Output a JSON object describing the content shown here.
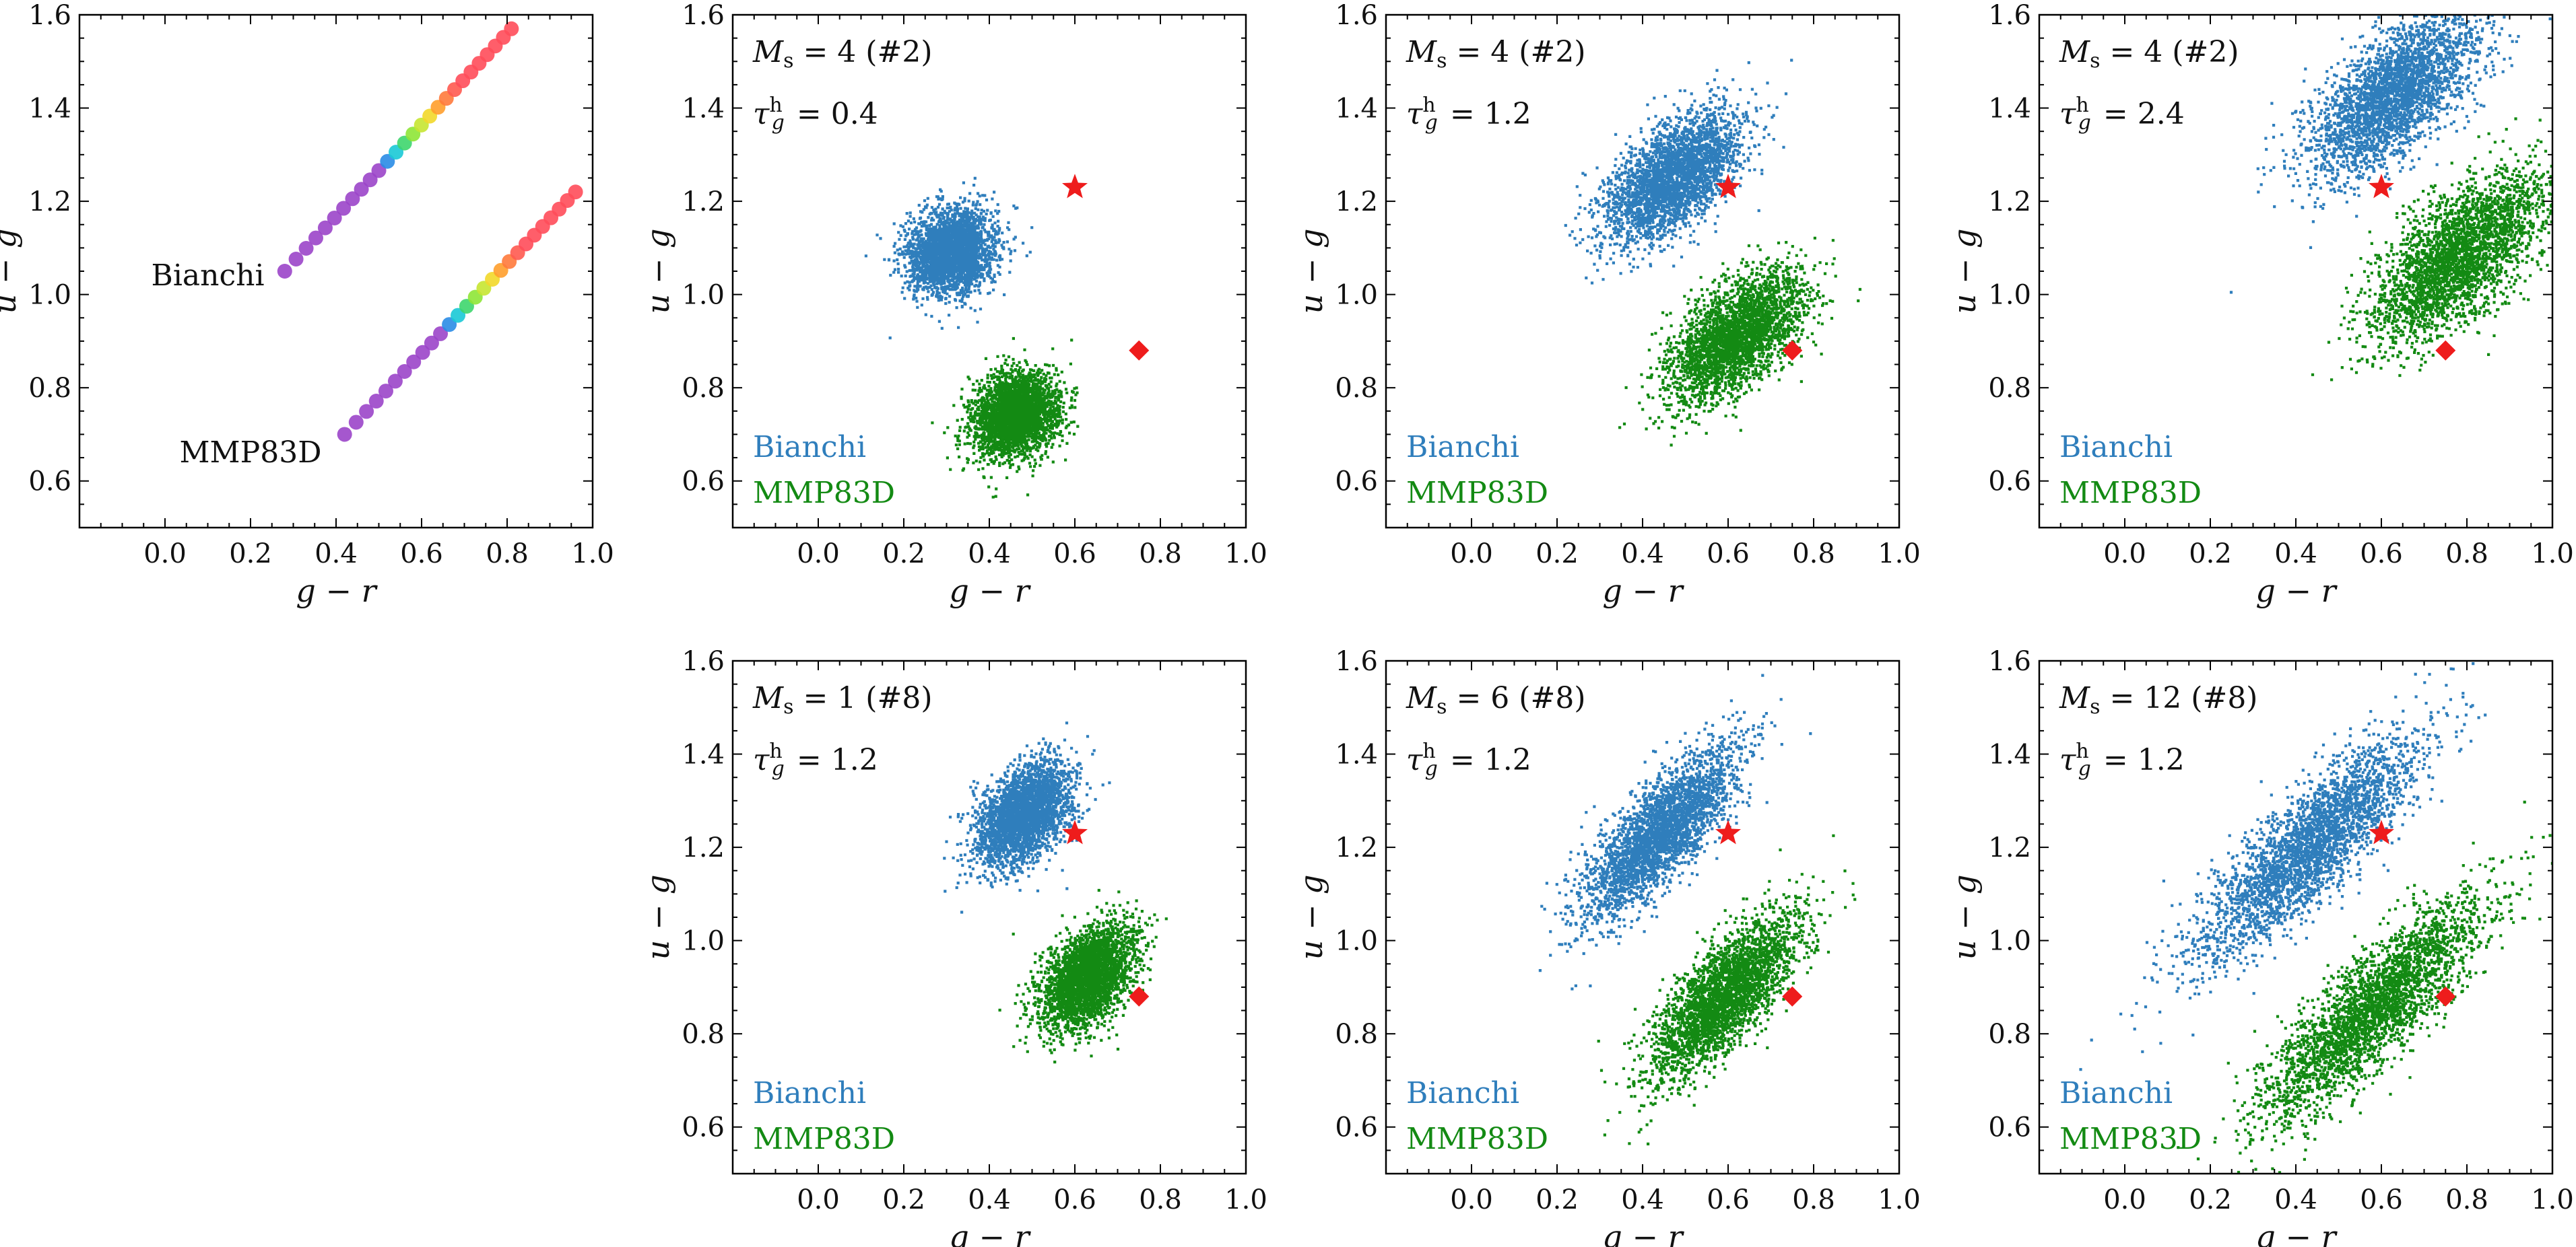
{
  "figure": {
    "layout": "two rows of scatter panels, 4 on top, 3 on bottom (bottom-left slot empty)"
  },
  "chart_data": [
    {
      "id": "p0",
      "type": "scatter",
      "title": "",
      "xlabel": "g − r",
      "ylabel": "u − g",
      "xlim": [
        -0.2,
        1.0
      ],
      "ylim": [
        0.5,
        1.6
      ],
      "xticks": [
        0.0,
        0.2,
        0.4,
        0.6,
        0.8,
        1.0
      ],
      "xtick_labels": [
        "0.0",
        "0.2",
        "0.4",
        "0.6",
        "0.8",
        "1.0"
      ],
      "yticks": [
        0.6,
        0.8,
        1.0,
        1.2,
        1.4,
        1.6
      ],
      "ytick_labels": [
        "0.6",
        "0.8",
        "1.0",
        "1.2",
        "1.4",
        "1.6"
      ],
      "annotations": [],
      "tracks": [
        {
          "name": "Bianchi",
          "label_at": [
            0.1,
            1.02
          ],
          "x_start": 0.28,
          "y_start": 1.05,
          "x_end": 0.81,
          "y_end": 1.57,
          "n": 27,
          "colors": [
            "#9b45c9",
            "#9b45c9",
            "#9b45c9",
            "#9b45c9",
            "#9b45c9",
            "#9b45c9",
            "#9b45c9",
            "#9b45c9",
            "#9b45c9",
            "#9b45c9",
            "#9b45c9",
            "#2a8ce6",
            "#19c9d6",
            "#3ed66d",
            "#8ee636",
            "#c6e531",
            "#f2d82a",
            "#ff9f2c",
            "#ff7a3c",
            "#ff5a50",
            "#ff4d5a",
            "#ff4d5a",
            "#ff4d5a",
            "#ff4d5a",
            "#ff4d5a",
            "#ff4d5a",
            "#ff4d5a"
          ]
        },
        {
          "name": "MMP83D",
          "label_at": [
            0.2,
            0.64
          ],
          "x_start": 0.42,
          "y_start": 0.7,
          "x_end": 0.96,
          "y_end": 1.22,
          "n": 27,
          "colors": [
            "#9b45c9",
            "#9b45c9",
            "#9b45c9",
            "#9b45c9",
            "#9b45c9",
            "#9b45c9",
            "#9b45c9",
            "#9b45c9",
            "#9b45c9",
            "#9b45c9",
            "#9b45c9",
            "#2a8ce6",
            "#19c9d6",
            "#3ed66d",
            "#8ee636",
            "#c6e531",
            "#f2d82a",
            "#ff9f2c",
            "#ff7a3c",
            "#ff5a50",
            "#ff4d5a",
            "#ff4d5a",
            "#ff4d5a",
            "#ff4d5a",
            "#ff4d5a",
            "#ff4d5a",
            "#ff4d5a"
          ]
        }
      ]
    },
    {
      "id": "p1",
      "type": "scatter",
      "title": "",
      "xlabel": "g − r",
      "ylabel": "u − g",
      "xlim": [
        -0.2,
        1.0
      ],
      "ylim": [
        0.5,
        1.6
      ],
      "xticks": [
        0.0,
        0.2,
        0.4,
        0.6,
        0.8,
        1.0
      ],
      "xtick_labels": [
        "0.0",
        "0.2",
        "0.4",
        "0.6",
        "0.8",
        "1.0"
      ],
      "yticks": [
        0.6,
        0.8,
        1.0,
        1.2,
        1.4,
        1.6
      ],
      "ytick_labels": [
        "0.6",
        "0.8",
        "1.0",
        "1.2",
        "1.4",
        "1.6"
      ],
      "annotations": [
        "M_s = 4 (#2)",
        "τ_g^h = 0.4"
      ],
      "legend": [
        "Bianchi",
        "MMP83D"
      ],
      "series": [
        {
          "name": "Bianchi",
          "color": "#2f7ebc",
          "center": [
            0.31,
            1.09
          ],
          "spread": [
            0.05,
            0.045
          ],
          "rho": 0.15
        },
        {
          "name": "MMP83D",
          "color": "#138a13",
          "center": [
            0.46,
            0.74
          ],
          "spread": [
            0.05,
            0.045
          ],
          "rho": 0.15
        }
      ],
      "markers": [
        {
          "symbol": "star",
          "name": "reference point A",
          "x": 0.6,
          "y": 1.23,
          "color": "#ee1c1c"
        },
        {
          "symbol": "diamond",
          "name": "reference point B",
          "x": 0.75,
          "y": 0.88,
          "color": "#ee1c1c"
        }
      ]
    },
    {
      "id": "p2",
      "type": "scatter",
      "title": "",
      "xlabel": "g − r",
      "ylabel": "u − g",
      "xlim": [
        -0.2,
        1.0
      ],
      "ylim": [
        0.5,
        1.6
      ],
      "xticks": [
        0.0,
        0.2,
        0.4,
        0.6,
        0.8,
        1.0
      ],
      "xtick_labels": [
        "0.0",
        "0.2",
        "0.4",
        "0.6",
        "0.8",
        "1.0"
      ],
      "yticks": [
        0.6,
        0.8,
        1.0,
        1.2,
        1.4,
        1.6
      ],
      "ytick_labels": [
        "0.6",
        "0.8",
        "1.0",
        "1.2",
        "1.4",
        "1.6"
      ],
      "annotations": [
        "M_s = 4 (#2)",
        "τ_g^h = 1.2"
      ],
      "legend": [
        "Bianchi",
        "MMP83D"
      ],
      "series": [
        {
          "name": "Bianchi",
          "color": "#2f7ebc",
          "center": [
            0.47,
            1.25
          ],
          "spread": [
            0.08,
            0.07
          ],
          "rho": 0.6
        },
        {
          "name": "MMP83D",
          "color": "#138a13",
          "center": [
            0.62,
            0.91
          ],
          "spread": [
            0.08,
            0.07
          ],
          "rho": 0.6
        }
      ],
      "markers": [
        {
          "symbol": "star",
          "name": "reference point A",
          "x": 0.6,
          "y": 1.23,
          "color": "#ee1c1c"
        },
        {
          "symbol": "diamond",
          "name": "reference point B",
          "x": 0.75,
          "y": 0.88,
          "color": "#ee1c1c"
        }
      ]
    },
    {
      "id": "p3",
      "type": "scatter",
      "title": "",
      "xlabel": "g − r",
      "ylabel": "u − g",
      "xlim": [
        -0.2,
        1.0
      ],
      "ylim": [
        0.5,
        1.6
      ],
      "xticks": [
        0.0,
        0.2,
        0.4,
        0.6,
        0.8,
        1.0
      ],
      "xtick_labels": [
        "0.0",
        "0.2",
        "0.4",
        "0.6",
        "0.8",
        "1.0"
      ],
      "yticks": [
        0.6,
        0.8,
        1.0,
        1.2,
        1.4,
        1.6
      ],
      "ytick_labels": [
        "0.6",
        "0.8",
        "1.0",
        "1.2",
        "1.4",
        "1.6"
      ],
      "annotations": [
        "M_s = 4 (#2)",
        "τ_g^h = 2.4"
      ],
      "legend": [
        "Bianchi",
        "MMP83D"
      ],
      "series": [
        {
          "name": "Bianchi",
          "color": "#2f7ebc",
          "center": [
            0.63,
            1.43
          ],
          "spread": [
            0.1,
            0.09
          ],
          "rho": 0.65
        },
        {
          "name": "MMP83D",
          "color": "#138a13",
          "center": [
            0.78,
            1.08
          ],
          "spread": [
            0.1,
            0.09
          ],
          "rho": 0.65
        }
      ],
      "markers": [
        {
          "symbol": "star",
          "name": "reference point A",
          "x": 0.6,
          "y": 1.23,
          "color": "#ee1c1c"
        },
        {
          "symbol": "diamond",
          "name": "reference point B",
          "x": 0.75,
          "y": 0.88,
          "color": "#ee1c1c"
        }
      ]
    },
    {
      "id": "p4",
      "type": "scatter",
      "title": "",
      "xlabel": "g − r",
      "ylabel": "u − g",
      "xlim": [
        -0.2,
        1.0
      ],
      "ylim": [
        0.5,
        1.6
      ],
      "xticks": [
        0.0,
        0.2,
        0.4,
        0.6,
        0.8,
        1.0
      ],
      "xtick_labels": [
        "0.0",
        "0.2",
        "0.4",
        "0.6",
        "0.8",
        "1.0"
      ],
      "yticks": [
        0.6,
        0.8,
        1.0,
        1.2,
        1.4,
        1.6
      ],
      "ytick_labels": [
        "0.6",
        "0.8",
        "1.0",
        "1.2",
        "1.4",
        "1.6"
      ],
      "annotations": [
        "M_s = 1 (#8)",
        "τ_g^h = 1.2"
      ],
      "legend": [
        "Bianchi",
        "MMP83D"
      ],
      "series": [
        {
          "name": "Bianchi",
          "color": "#2f7ebc",
          "center": [
            0.48,
            1.27
          ],
          "spread": [
            0.055,
            0.055
          ],
          "rho": 0.45
        },
        {
          "name": "MMP83D",
          "color": "#138a13",
          "center": [
            0.63,
            0.92
          ],
          "spread": [
            0.055,
            0.055
          ],
          "rho": 0.45
        }
      ],
      "markers": [
        {
          "symbol": "star",
          "name": "reference point A",
          "x": 0.6,
          "y": 1.23,
          "color": "#ee1c1c"
        },
        {
          "symbol": "diamond",
          "name": "reference point B",
          "x": 0.75,
          "y": 0.88,
          "color": "#ee1c1c"
        }
      ]
    },
    {
      "id": "p5",
      "type": "scatter",
      "title": "",
      "xlabel": "g − r",
      "ylabel": "u − g",
      "xlim": [
        -0.2,
        1.0
      ],
      "ylim": [
        0.5,
        1.6
      ],
      "xticks": [
        0.0,
        0.2,
        0.4,
        0.6,
        0.8,
        1.0
      ],
      "xtick_labels": [
        "0.0",
        "0.2",
        "0.4",
        "0.6",
        "0.8",
        "1.0"
      ],
      "yticks": [
        0.6,
        0.8,
        1.0,
        1.2,
        1.4,
        1.6
      ],
      "ytick_labels": [
        "0.6",
        "0.8",
        "1.0",
        "1.2",
        "1.4",
        "1.6"
      ],
      "annotations": [
        "M_s = 6 (#8)",
        "τ_g^h = 1.2"
      ],
      "legend": [
        "Bianchi",
        "MMP83D"
      ],
      "series": [
        {
          "name": "Bianchi",
          "color": "#2f7ebc",
          "center": [
            0.44,
            1.23
          ],
          "spread": [
            0.09,
            0.09
          ],
          "rho": 0.78
        },
        {
          "name": "MMP83D",
          "color": "#138a13",
          "center": [
            0.59,
            0.88
          ],
          "spread": [
            0.09,
            0.09
          ],
          "rho": 0.78
        }
      ],
      "markers": [
        {
          "symbol": "star",
          "name": "reference point A",
          "x": 0.6,
          "y": 1.23,
          "color": "#ee1c1c"
        },
        {
          "symbol": "diamond",
          "name": "reference point B",
          "x": 0.75,
          "y": 0.88,
          "color": "#ee1c1c"
        }
      ]
    },
    {
      "id": "p6",
      "type": "scatter",
      "title": "",
      "xlabel": "g − r",
      "ylabel": "u − g",
      "xlim": [
        -0.2,
        1.0
      ],
      "ylim": [
        0.5,
        1.6
      ],
      "xticks": [
        0.0,
        0.2,
        0.4,
        0.6,
        0.8,
        1.0
      ],
      "xtick_labels": [
        "0.0",
        "0.2",
        "0.4",
        "0.6",
        "0.8",
        "1.0"
      ],
      "yticks": [
        0.6,
        0.8,
        1.0,
        1.2,
        1.4,
        1.6
      ],
      "ytick_labels": [
        "0.6",
        "0.8",
        "1.0",
        "1.2",
        "1.4",
        "1.6"
      ],
      "annotations": [
        "M_s = 12 (#8)",
        "τ_g^h = 1.2"
      ],
      "legend": [
        "Bianchi",
        "MMP83D"
      ],
      "series": [
        {
          "name": "Bianchi",
          "color": "#2f7ebc",
          "center": [
            0.43,
            1.2
          ],
          "spread": [
            0.13,
            0.12
          ],
          "rho": 0.85
        },
        {
          "name": "MMP83D",
          "color": "#138a13",
          "center": [
            0.58,
            0.85
          ],
          "spread": [
            0.13,
            0.12
          ],
          "rho": 0.85
        }
      ],
      "markers": [
        {
          "symbol": "star",
          "name": "reference point A",
          "x": 0.6,
          "y": 1.23,
          "color": "#ee1c1c"
        },
        {
          "symbol": "diamond",
          "name": "reference point B",
          "x": 0.75,
          "y": 0.88,
          "color": "#ee1c1c"
        }
      ]
    }
  ]
}
